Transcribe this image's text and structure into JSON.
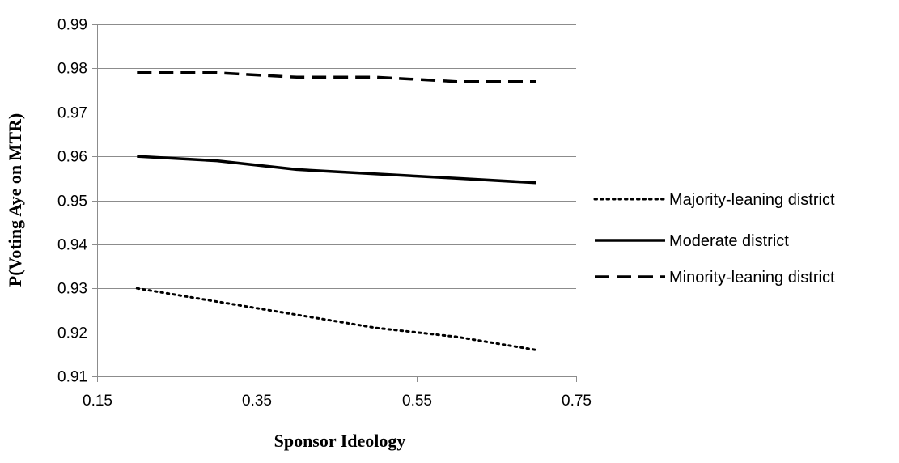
{
  "chart_data": {
    "type": "line",
    "xlabel": "Sponsor Ideology",
    "ylabel": "P(Voting Aye on MTR)",
    "xlim": [
      0.15,
      0.75
    ],
    "ylim": [
      0.91,
      0.99
    ],
    "x_ticks": [
      0.15,
      0.35,
      0.55,
      0.75
    ],
    "y_ticks": [
      0.91,
      0.92,
      0.93,
      0.94,
      0.95,
      0.96,
      0.97,
      0.98,
      0.99
    ],
    "x_tick_labels": [
      "0.15",
      "0.35",
      "0.55",
      "0.75"
    ],
    "y_tick_labels": [
      "0.91",
      "0.92",
      "0.93",
      "0.94",
      "0.95",
      "0.96",
      "0.97",
      "0.98",
      "0.99"
    ],
    "grid": "horizontal",
    "legend_position": "right",
    "series": [
      {
        "name": "Majority-leaning district",
        "style": "dotted",
        "color": "#000000",
        "x": [
          0.2,
          0.3,
          0.4,
          0.5,
          0.6,
          0.7
        ],
        "y": [
          0.93,
          0.927,
          0.924,
          0.921,
          0.919,
          0.916
        ]
      },
      {
        "name": "Moderate district",
        "style": "solid",
        "color": "#000000",
        "x": [
          0.2,
          0.3,
          0.4,
          0.5,
          0.6,
          0.7
        ],
        "y": [
          0.96,
          0.959,
          0.957,
          0.956,
          0.955,
          0.954
        ]
      },
      {
        "name": "Minority-leaning district",
        "style": "dashed",
        "color": "#000000",
        "x": [
          0.2,
          0.3,
          0.4,
          0.5,
          0.6,
          0.7
        ],
        "y": [
          0.979,
          0.979,
          0.978,
          0.978,
          0.977,
          0.977
        ]
      }
    ]
  }
}
